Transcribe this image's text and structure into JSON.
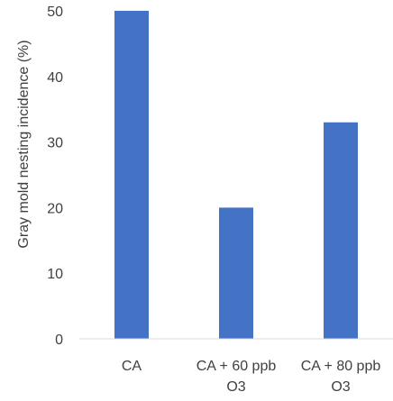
{
  "chart_data": {
    "type": "bar",
    "title": "",
    "xlabel": "",
    "ylabel": "Gray mold nesting incidence (%)",
    "categories": [
      [
        "CA"
      ],
      [
        "CA + 60 ppb",
        "O3"
      ],
      [
        "CA + 80 ppb",
        "O3"
      ]
    ],
    "values": [
      50,
      20,
      33
    ],
    "ylim": [
      0,
      50
    ],
    "yticks": [
      0,
      10,
      20,
      30,
      40,
      50
    ],
    "grid": false,
    "legend": "none",
    "bar_color": "#4472C4",
    "axis_color": "#D9D9D9",
    "text_color": "#404040"
  }
}
